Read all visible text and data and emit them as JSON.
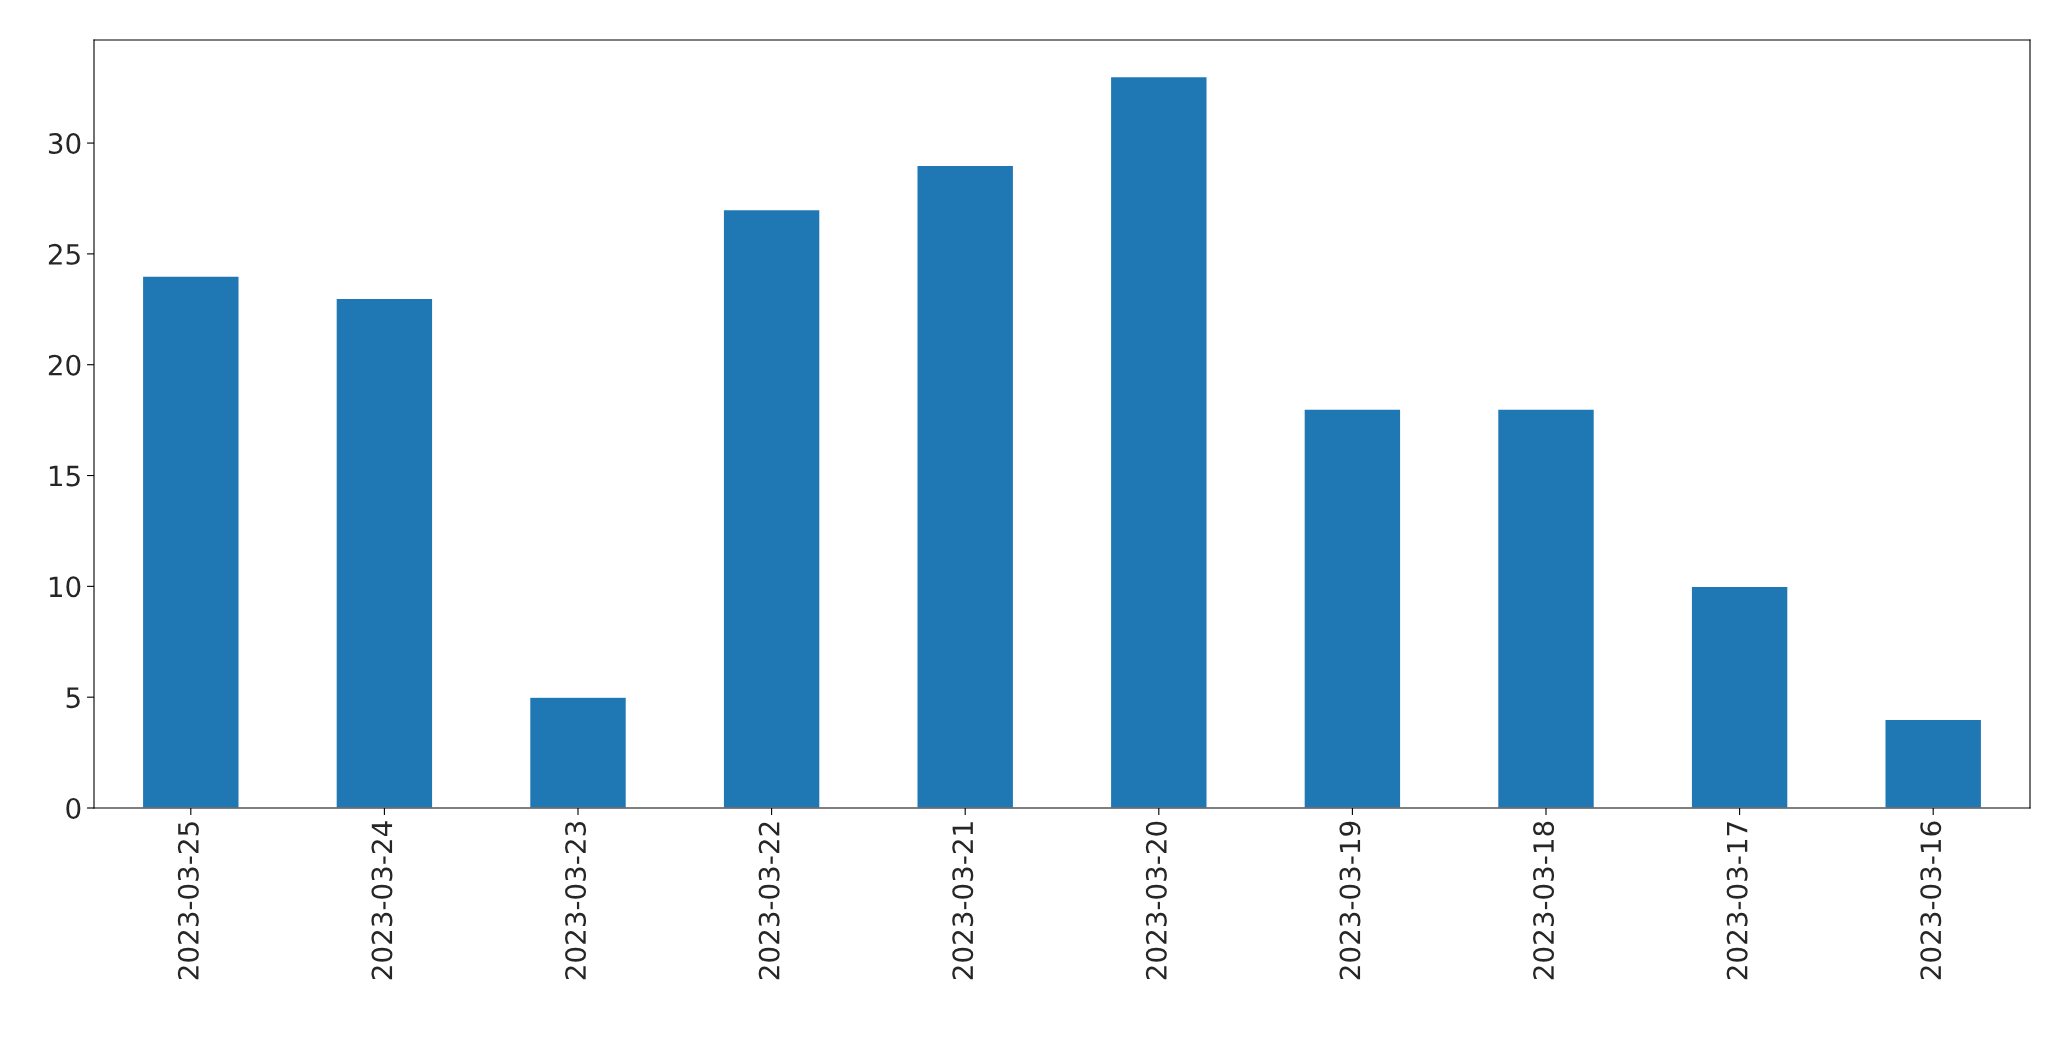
{
  "chart_data": {
    "type": "bar",
    "categories": [
      "2023-03-25",
      "2023-03-24",
      "2023-03-23",
      "2023-03-22",
      "2023-03-21",
      "2023-03-20",
      "2023-03-19",
      "2023-03-18",
      "2023-03-17",
      "2023-03-16"
    ],
    "values": [
      24,
      23,
      5,
      27,
      29,
      33,
      18,
      18,
      10,
      4
    ],
    "color": "#1f77b4",
    "ylim": [
      0,
      34.65
    ],
    "yticks": [
      0,
      5,
      10,
      15,
      20,
      25,
      30
    ],
    "grid": false,
    "legend": false
  }
}
